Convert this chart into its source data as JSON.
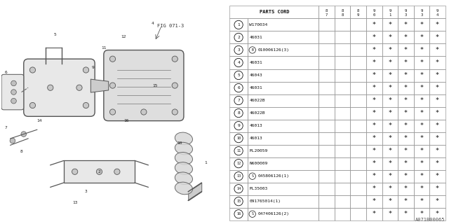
{
  "fig_code": "A071B00065",
  "fig_ref": "FIG 071-3",
  "rows": [
    [
      "1",
      "W170034",
      false,
      false,
      false,
      true,
      true,
      true,
      true,
      true
    ],
    [
      "2",
      "46031",
      false,
      false,
      false,
      true,
      true,
      true,
      true,
      true
    ],
    [
      "3",
      "B010006126(3)",
      false,
      false,
      false,
      true,
      true,
      true,
      true,
      true
    ],
    [
      "4",
      "46031",
      false,
      false,
      false,
      true,
      true,
      true,
      true,
      true
    ],
    [
      "5",
      "46043",
      false,
      false,
      false,
      true,
      true,
      true,
      true,
      true
    ],
    [
      "6",
      "46031",
      false,
      false,
      false,
      true,
      true,
      true,
      true,
      true
    ],
    [
      "7",
      "46022B",
      false,
      false,
      false,
      true,
      true,
      true,
      true,
      true
    ],
    [
      "8",
      "46022B",
      false,
      false,
      false,
      true,
      true,
      true,
      true,
      true
    ],
    [
      "9",
      "46013",
      false,
      false,
      false,
      true,
      true,
      true,
      true,
      true
    ],
    [
      "10",
      "46013",
      false,
      false,
      false,
      true,
      true,
      true,
      true,
      true
    ],
    [
      "11",
      "ML20059",
      false,
      false,
      false,
      true,
      true,
      true,
      true,
      true
    ],
    [
      "12",
      "N600009",
      false,
      false,
      false,
      true,
      true,
      true,
      true,
      true
    ],
    [
      "13",
      "S045806126(1)",
      false,
      false,
      false,
      true,
      true,
      true,
      true,
      true
    ],
    [
      "14",
      "ML35003",
      false,
      false,
      false,
      true,
      true,
      true,
      true,
      true
    ],
    [
      "15",
      "091765014(1)",
      false,
      false,
      false,
      true,
      true,
      true,
      true,
      true
    ],
    [
      "16",
      "S047406126(2)",
      false,
      false,
      false,
      true,
      true,
      true,
      true,
      true
    ]
  ],
  "year_cols": [
    "87",
    "88",
    "89",
    "90",
    "91",
    "93",
    "93",
    "94"
  ],
  "bg_color": "#ffffff",
  "line_color": "#999999",
  "text_color": "#111111",
  "star_color": "#444444",
  "diagram_line_color": "#555555",
  "diagram_fill_color": "#e8e8e8"
}
